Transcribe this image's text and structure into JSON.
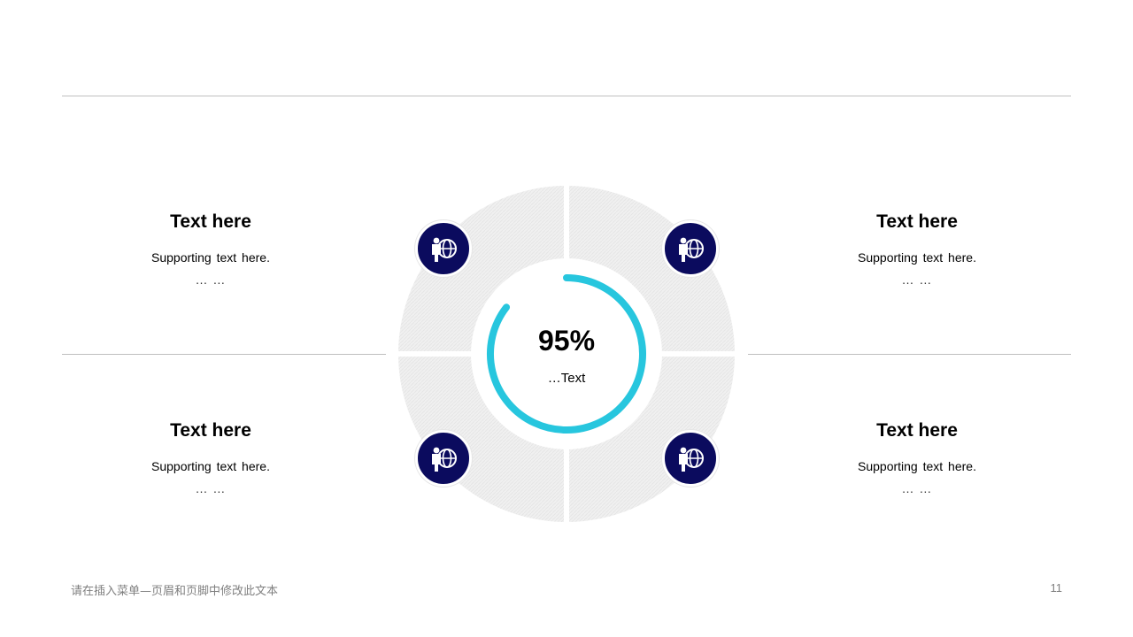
{
  "blocks": [
    {
      "title": "Text here",
      "support": "Supporting text here.",
      "dots": "… …"
    },
    {
      "title": "Text here",
      "support": "Supporting text here.",
      "dots": "… …"
    },
    {
      "title": "Text here",
      "support": "Supporting text here.",
      "dots": "… …"
    },
    {
      "title": "Text here",
      "support": "Supporting text here.",
      "dots": "… …"
    }
  ],
  "center": {
    "value": "95%",
    "label": "…Text",
    "progress": 0.95
  },
  "colors": {
    "accent": "#27c6de",
    "icon_bg": "#0b0b5e",
    "segment": "#efefef",
    "rule": "#bfbfbf"
  },
  "icons": [
    "person-globe-icon",
    "person-globe-icon",
    "person-globe-icon",
    "person-globe-icon"
  ],
  "footer": {
    "text": "请在插入菜单—页眉和页脚中修改此文本",
    "page": "11"
  }
}
